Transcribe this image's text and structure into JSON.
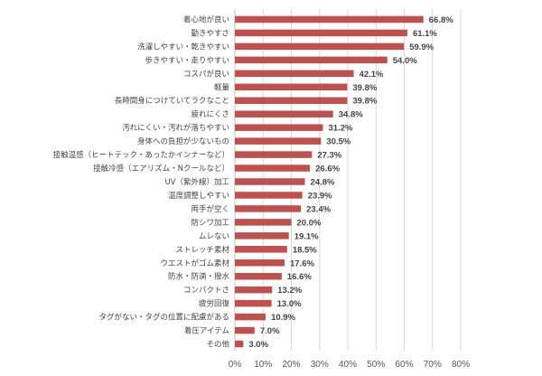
{
  "chart_data": {
    "type": "bar",
    "orientation": "horizontal",
    "categories": [
      "着心地が良い",
      "動きやすさ",
      "洗濯しやすい・乾きやすい",
      "歩きやすい・走りやすい",
      "コスパが良い",
      "軽量",
      "長時間身につけていてラクなこと",
      "疲れにくさ",
      "汚れにくい・汚れが落ちやすい",
      "身体への負担が少ないもの",
      "接触温感（ヒートテック・あったかインナーなど）",
      "接触冷感（エアリズム・Nクールなど）",
      "UV（紫外線）加工",
      "温度調整しやすい",
      "両手が空く",
      "防シワ加工",
      "ムレない",
      "ストレッチ素材",
      "ウエストがゴム素材",
      "防水・防滴・撥水",
      "コンパクトさ",
      "疲労回復",
      "タグがない・タグの位置に配慮がある",
      "着圧アイテム",
      "その他"
    ],
    "values": [
      66.8,
      61.1,
      59.9,
      54.0,
      42.1,
      39.8,
      39.8,
      34.8,
      31.2,
      30.5,
      27.3,
      26.6,
      24.8,
      23.9,
      23.4,
      20.0,
      19.1,
      18.5,
      17.6,
      16.6,
      13.2,
      13.0,
      10.9,
      7.0,
      3.0
    ],
    "value_labels": [
      "66.8%",
      "61.1%",
      "59.9%",
      "54.0%",
      "42.1%",
      "39.8%",
      "39.8%",
      "34.8%",
      "31.2%",
      "30.5%",
      "27.3%",
      "26.6%",
      "24.8%",
      "23.9%",
      "23.4%",
      "20.0%",
      "19.1%",
      "18.5%",
      "17.6%",
      "16.6%",
      "13.2%",
      "13.0%",
      "10.9%",
      "7.0%",
      "3.0%"
    ],
    "xticks": [
      "0%",
      "10%",
      "20%",
      "30%",
      "40%",
      "50%",
      "60%",
      "70%",
      "80%"
    ],
    "xlim": [
      0,
      80
    ],
    "grid": true,
    "bar_color": "#c0504d",
    "title": "",
    "xlabel": "",
    "ylabel": ""
  }
}
